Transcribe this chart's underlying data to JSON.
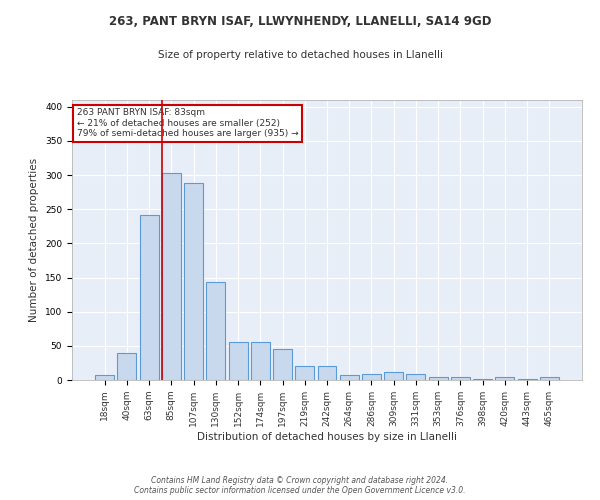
{
  "title1": "263, PANT BRYN ISAF, LLWYNHENDY, LLANELLI, SA14 9GD",
  "title2": "Size of property relative to detached houses in Llanelli",
  "xlabel": "Distribution of detached houses by size in Llanelli",
  "ylabel": "Number of detached properties",
  "footnote": "Contains HM Land Registry data © Crown copyright and database right 2024.\nContains public sector information licensed under the Open Government Licence v3.0.",
  "bar_color": "#c9d9ed",
  "bar_edge_color": "#5b9bd5",
  "background_color": "#e8eef7",
  "bins": [
    "18sqm",
    "40sqm",
    "63sqm",
    "85sqm",
    "107sqm",
    "130sqm",
    "152sqm",
    "174sqm",
    "197sqm",
    "219sqm",
    "242sqm",
    "264sqm",
    "286sqm",
    "309sqm",
    "331sqm",
    "353sqm",
    "376sqm",
    "398sqm",
    "420sqm",
    "443sqm",
    "465sqm"
  ],
  "values": [
    8,
    40,
    241,
    303,
    289,
    143,
    56,
    56,
    45,
    20,
    21,
    8,
    9,
    11,
    9,
    4,
    4,
    2,
    4,
    1,
    4
  ],
  "property_label": "263 PANT BRYN ISAF: 83sqm",
  "pct_smaller": "21% of detached houses are smaller (252)",
  "pct_larger": "79% of semi-detached houses are larger (935)",
  "vline_x_index": 3,
  "ylim": [
    0,
    410
  ],
  "annotation_box_color": "#ffffff",
  "annotation_box_edge": "#cc0000",
  "vline_color": "#cc0000",
  "text_color": "#333333",
  "title1_fontsize": 8.5,
  "title2_fontsize": 7.5,
  "xlabel_fontsize": 7.5,
  "ylabel_fontsize": 7.5,
  "tick_fontsize": 6.5,
  "annot_fontsize": 6.5,
  "footnote_fontsize": 5.5
}
